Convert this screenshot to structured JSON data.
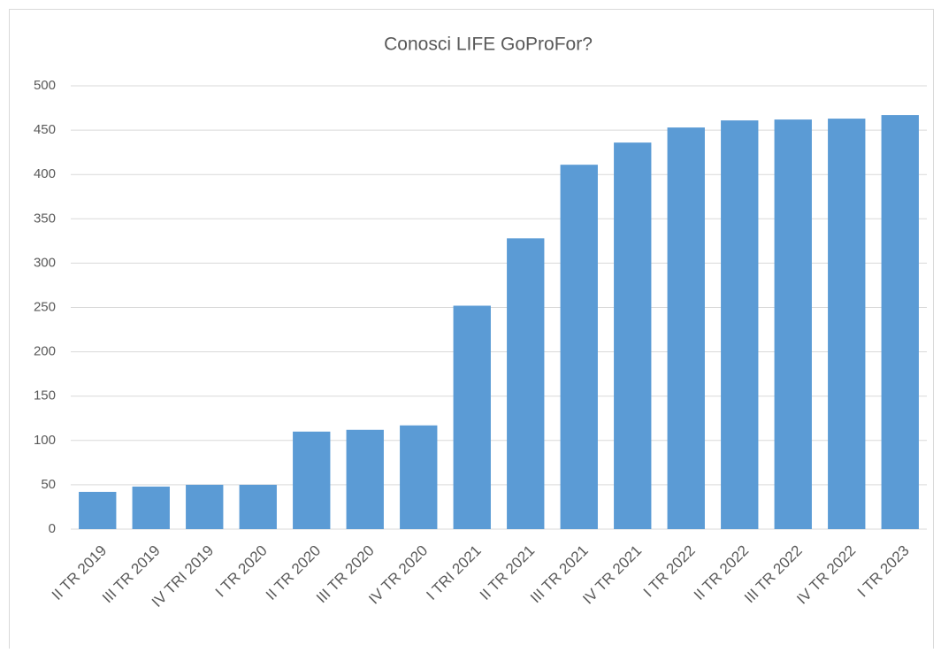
{
  "chart_data": {
    "type": "bar",
    "title": "Conosci LIFE GoProFor?",
    "categories": [
      "II TR 2019",
      "III TR 2019",
      "IV TRI 2019",
      "I TR 2020",
      "II TR 2020",
      "III TR 2020",
      "IV TR 2020",
      "I TRI 2021",
      "II TR 2021",
      "III TR 2021",
      "IV TR 2021",
      "I TR 2022",
      "II TR 2022",
      "III TR 2022",
      "IV TR 2022",
      "I TR 2023"
    ],
    "values": [
      42,
      48,
      50,
      50,
      110,
      112,
      117,
      252,
      328,
      411,
      436,
      453,
      461,
      462,
      463,
      467
    ],
    "color": "#5b9bd5",
    "ylim": [
      0,
      500
    ],
    "yticks": [
      0,
      50,
      100,
      150,
      200,
      250,
      300,
      350,
      400,
      450,
      500
    ],
    "grid": true
  }
}
